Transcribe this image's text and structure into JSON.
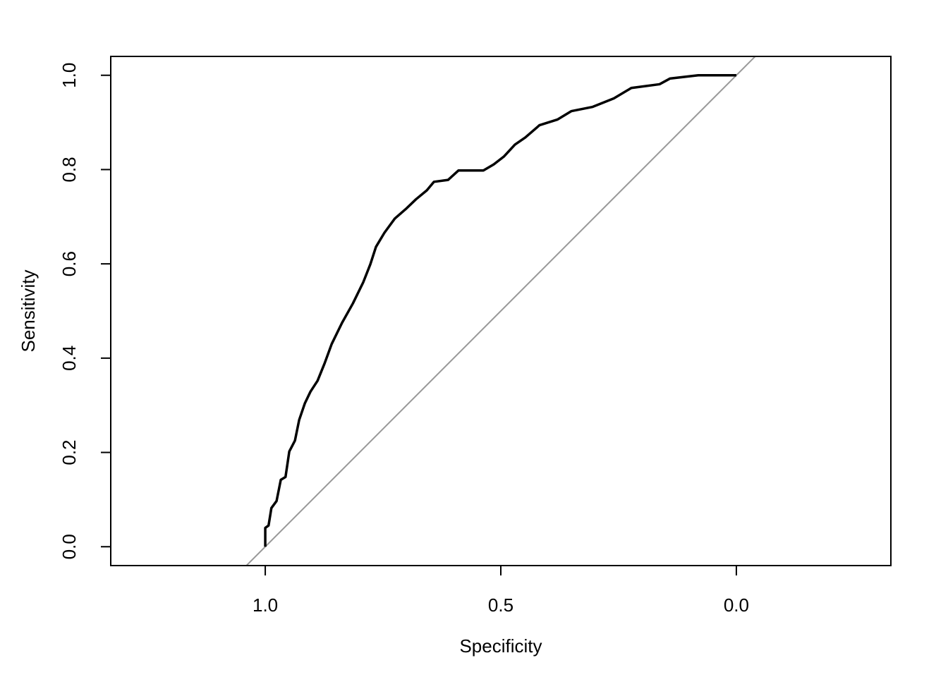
{
  "chart_data": {
    "type": "line",
    "x_label": "Specificity",
    "y_label": "Sensitivity",
    "x": [
      1.0,
      1.0,
      0.993,
      0.987,
      0.976,
      0.967,
      0.957,
      0.949,
      0.937,
      0.928,
      0.916,
      0.904,
      0.889,
      0.874,
      0.859,
      0.837,
      0.814,
      0.792,
      0.777,
      0.765,
      0.747,
      0.725,
      0.702,
      0.68,
      0.657,
      0.642,
      0.612,
      0.59,
      0.537,
      0.515,
      0.493,
      0.47,
      0.448,
      0.418,
      0.38,
      0.35,
      0.305,
      0.26,
      0.223,
      0.163,
      0.141,
      0.081,
      0.0
    ],
    "values": [
      0.0,
      0.04,
      0.045,
      0.082,
      0.097,
      0.142,
      0.148,
      0.202,
      0.225,
      0.269,
      0.304,
      0.329,
      0.352,
      0.389,
      0.43,
      0.475,
      0.516,
      0.561,
      0.599,
      0.636,
      0.666,
      0.696,
      0.716,
      0.737,
      0.756,
      0.774,
      0.778,
      0.798,
      0.798,
      0.811,
      0.828,
      0.853,
      0.868,
      0.894,
      0.906,
      0.924,
      0.933,
      0.951,
      0.973,
      0.981,
      0.993,
      1.0,
      1.0
    ],
    "color": "#000000",
    "xlim": [
      1.328,
      -0.328
    ],
    "ylim": [
      -0.04,
      1.04
    ],
    "xticks": [
      {
        "value": 1.0,
        "label": "1.0"
      },
      0.5,
      {
        "value": 0.0,
        "label": "0.0"
      }
    ],
    "yticks": [
      {
        "value": 0.0,
        "label": "0.0"
      },
      0.2,
      0.4,
      0.6,
      0.8,
      {
        "value": 1.0,
        "label": "1.0"
      }
    ],
    "diagonal": true,
    "diagonal_color": "#999999"
  }
}
